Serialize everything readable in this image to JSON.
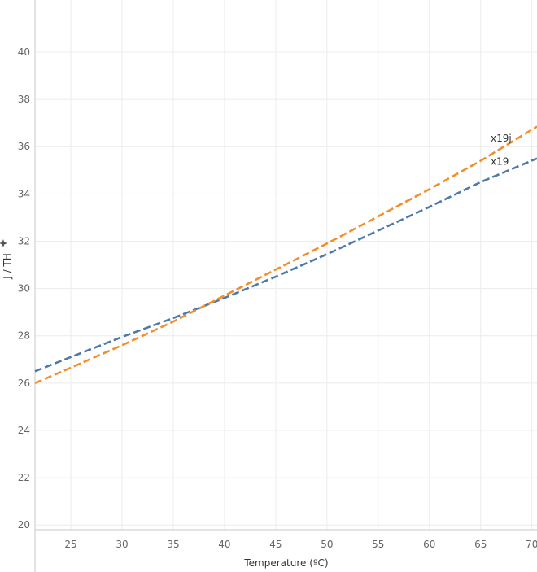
{
  "chart_data": {
    "type": "line",
    "xlabel": "Temperature (ºC)",
    "ylabel": "J / TH",
    "xlim": [
      21.5,
      70.5
    ],
    "ylim": [
      19.8,
      42.2
    ],
    "x_ticks": [
      25,
      30,
      35,
      40,
      45,
      50,
      55,
      60,
      65,
      70
    ],
    "y_ticks": [
      20,
      22,
      24,
      26,
      28,
      30,
      32,
      34,
      36,
      38,
      40
    ],
    "grid": true,
    "legend": "direct labels at line ends",
    "series": [
      {
        "name": "x19",
        "color": "#4e79a7",
        "x": [
          21.5,
          25,
          30,
          35,
          40,
          45,
          50,
          55,
          60,
          65,
          70.5
        ],
        "y": [
          26.5,
          27.1,
          27.95,
          28.75,
          29.6,
          30.5,
          31.45,
          32.45,
          33.45,
          34.5,
          35.5
        ]
      },
      {
        "name": "x19j",
        "color": "#f28e2b",
        "x": [
          21.5,
          25,
          30,
          35,
          40,
          45,
          50,
          55,
          60,
          65,
          70.5
        ],
        "y": [
          26.0,
          26.65,
          27.6,
          28.6,
          29.7,
          30.8,
          31.9,
          33.05,
          34.2,
          35.4,
          36.85
        ]
      }
    ]
  }
}
